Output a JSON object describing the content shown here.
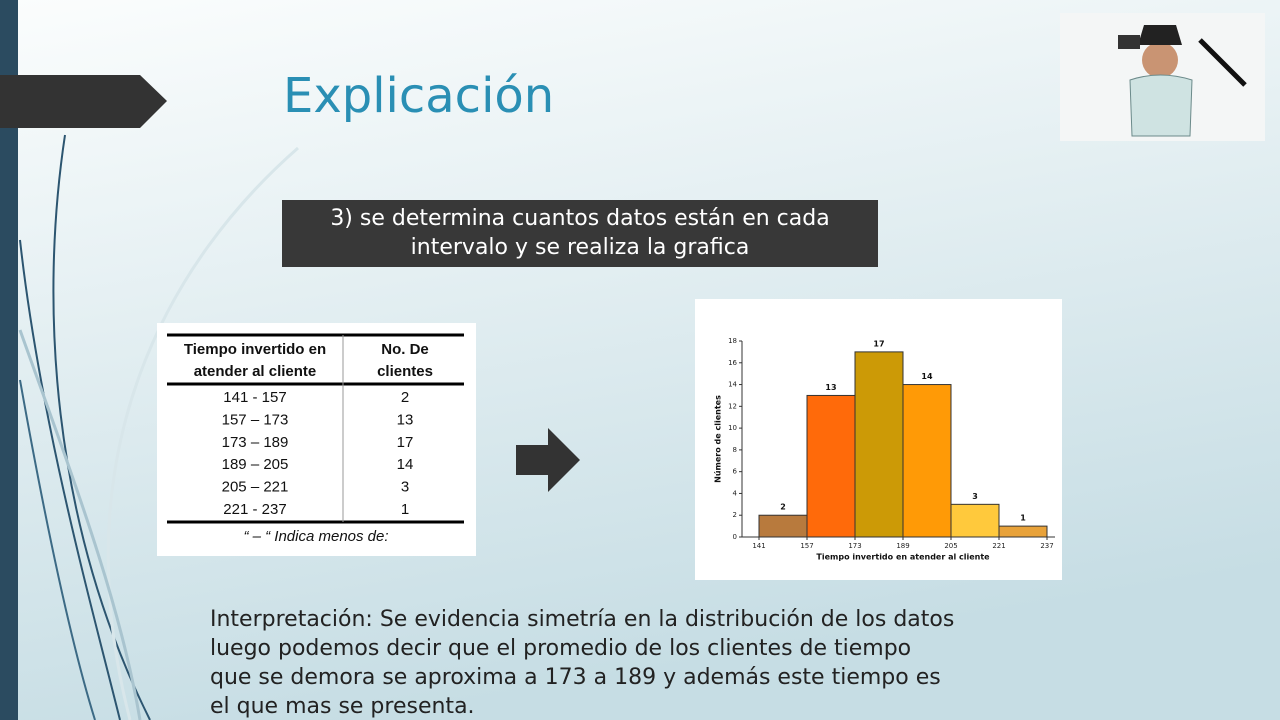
{
  "title": "Explicación",
  "step_box": {
    "lines": [
      "3) se determina  cuantos datos están en cada",
      "intervalo y se realiza la  grafica"
    ]
  },
  "table": {
    "header": [
      [
        "Tiempo invertido en",
        "atender al cliente"
      ],
      [
        "No. De",
        "clientes"
      ]
    ],
    "rows": [
      [
        "141 - 157",
        2
      ],
      [
        "157 – 173",
        13
      ],
      [
        "173 – 189",
        17
      ],
      [
        "189 – 205",
        14
      ],
      [
        "205 – 221",
        3
      ],
      [
        "221 - 237",
        1
      ]
    ],
    "footnote": "“ – “ Indica menos de:"
  },
  "chart_data": {
    "type": "histogram",
    "bins": [
      141,
      157,
      173,
      189,
      205,
      221,
      237
    ],
    "values": [
      2,
      13,
      17,
      14,
      3,
      1
    ],
    "colors": [
      "#b87a3d",
      "#ff6a0a",
      "#cc9a06",
      "#ff9a06",
      "#ffc93c",
      "#e8a23a"
    ],
    "xlabel": "Tiempo invertido en atender al cliente",
    "ylabel": "Número de clientes",
    "xlim": [
      141,
      237
    ],
    "xticks": [
      141,
      157,
      173,
      189,
      205,
      221,
      237
    ],
    "ylim": [
      0,
      18
    ],
    "yticks": [
      0,
      2,
      4,
      6,
      8,
      10,
      12,
      14,
      16,
      18
    ]
  },
  "interpretation": {
    "lines": [
      "Interpretación: Se evidencia  simetría en la  distribución de los datos",
      "luego podemos decir que el promedio  de los  clientes de tiempo",
      "que se demora se aproxima a 173 a 189   y además este tiempo es",
      "el que mas se presenta."
    ]
  }
}
